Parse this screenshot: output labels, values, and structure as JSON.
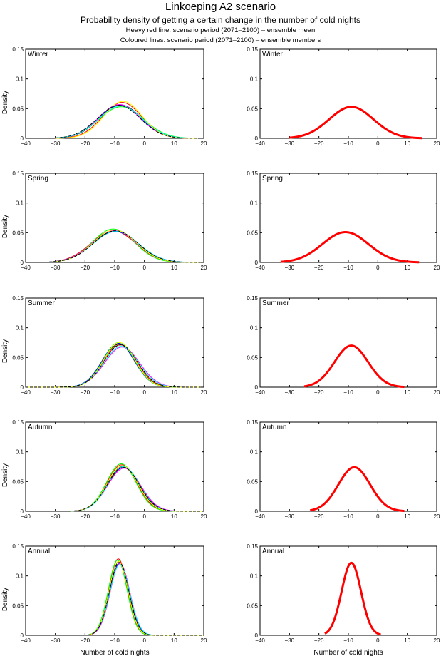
{
  "title": "Linkoeping A2 scenario",
  "subtitle": "Probability density of getting a certain change in the number of cold nights",
  "note_mean": "Heavy red line: scenario period (2071–2100) – ensemble mean",
  "note_members": "Coloured lines: scenario period (2071–2100) – ensemble members",
  "colors": {
    "ensemble_mean": "#ff0000",
    "members": [
      "#000000",
      "#ff0000",
      "#0000ff",
      "#00ff00",
      "#ff00ff",
      "#00ffff",
      "#ffff00",
      "#000000"
    ]
  },
  "chart_data": [
    {
      "type": "line",
      "panel": "Winter – ensemble members",
      "season": "Winter",
      "xlabel": "",
      "ylabel": "Density",
      "xlim": [
        -40,
        20
      ],
      "ylim": [
        0,
        0.15
      ],
      "xticks": [
        -40,
        -30,
        -20,
        -10,
        0,
        10,
        20
      ],
      "yticks": [
        0,
        0.05,
        0.1,
        0.15
      ],
      "xrange": [
        -30,
        18
      ],
      "series": [
        {
          "name": "member 1",
          "mean": -8.0,
          "sd": 7.1
        },
        {
          "name": "member 2",
          "mean": -7.5,
          "sd": 6.6
        },
        {
          "name": "member 3",
          "mean": -8.2,
          "sd": 7.2
        },
        {
          "name": "member 4",
          "mean": -7.8,
          "sd": 7.5
        },
        {
          "name": "member 5",
          "mean": -8.4,
          "sd": 7.0
        },
        {
          "name": "member 6",
          "mean": -8.0,
          "sd": 7.3
        },
        {
          "name": "member 7",
          "mean": -7.2,
          "sd": 6.4
        },
        {
          "name": "member 8",
          "mean": -8.6,
          "sd": 7.2
        }
      ]
    },
    {
      "type": "line",
      "panel": "Winter – ensemble mean",
      "season": "Winter",
      "xlabel": "",
      "ylabel": "",
      "xlim": [
        -40,
        20
      ],
      "ylim": [
        0,
        0.15
      ],
      "xticks": [
        -40,
        -30,
        -20,
        -10,
        0,
        10,
        20
      ],
      "yticks": [
        0,
        0.05,
        0.1,
        0.15
      ],
      "xrange": [
        -30,
        15
      ],
      "series": [
        {
          "name": "ensemble mean",
          "mean": -9.0,
          "sd": 7.5,
          "peak": 0.053
        }
      ]
    },
    {
      "type": "line",
      "panel": "Spring – ensemble members",
      "season": "Spring",
      "xlabel": "",
      "ylabel": "Density",
      "xlim": [
        -40,
        20
      ],
      "ylim": [
        0,
        0.15
      ],
      "xticks": [
        -40,
        -30,
        -20,
        -10,
        0,
        10,
        20
      ],
      "yticks": [
        0,
        0.05,
        0.1,
        0.15
      ],
      "xrange": [
        -32,
        19
      ],
      "series": [
        {
          "name": "member 1",
          "mean": -10.0,
          "sd": 7.6
        },
        {
          "name": "member 2",
          "mean": -10.5,
          "sd": 7.5
        },
        {
          "name": "member 3",
          "mean": -9.8,
          "sd": 7.7
        },
        {
          "name": "member 4",
          "mean": -10.5,
          "sd": 7.1
        },
        {
          "name": "member 5",
          "mean": -10.2,
          "sd": 7.4
        },
        {
          "name": "member 6",
          "mean": -9.6,
          "sd": 7.6
        },
        {
          "name": "member 7",
          "mean": -10.0,
          "sd": 7.3
        },
        {
          "name": "member 8",
          "mean": -9.7,
          "sd": 7.5
        }
      ]
    },
    {
      "type": "line",
      "panel": "Spring – ensemble mean",
      "season": "Spring",
      "xlabel": "",
      "ylabel": "",
      "xlim": [
        -40,
        20
      ],
      "ylim": [
        0,
        0.15
      ],
      "xticks": [
        -40,
        -30,
        -20,
        -10,
        0,
        10,
        20
      ],
      "yticks": [
        0,
        0.05,
        0.1,
        0.15
      ],
      "xrange": [
        -33,
        14
      ],
      "series": [
        {
          "name": "ensemble mean",
          "mean": -11.0,
          "sd": 7.8,
          "peak": 0.051
        }
      ]
    },
    {
      "type": "line",
      "panel": "Summer – ensemble members",
      "season": "Summer",
      "xlabel": "",
      "ylabel": "Density",
      "xlim": [
        -40,
        20
      ],
      "ylim": [
        0,
        0.15
      ],
      "xticks": [
        -40,
        -30,
        -20,
        -10,
        0,
        10,
        20
      ],
      "yticks": [
        0,
        0.05,
        0.1,
        0.15
      ],
      "xrange": [
        -40,
        19
      ],
      "series": [
        {
          "name": "member 1",
          "mean": -8.5,
          "sd": 5.5
        },
        {
          "name": "member 2",
          "mean": -8.2,
          "sd": 5.6
        },
        {
          "name": "member 3",
          "mean": -8.8,
          "sd": 5.4
        },
        {
          "name": "member 4",
          "mean": -8.6,
          "sd": 5.3
        },
        {
          "name": "member 5",
          "mean": -7.5,
          "sd": 5.9
        },
        {
          "name": "member 6",
          "mean": -7.8,
          "sd": 5.8
        },
        {
          "name": "member 7",
          "mean": -8.4,
          "sd": 5.3
        },
        {
          "name": "member 8",
          "mean": -8.0,
          "sd": 5.6
        }
      ]
    },
    {
      "type": "line",
      "panel": "Summer – ensemble mean",
      "season": "Summer",
      "xlabel": "",
      "ylabel": "",
      "xlim": [
        -40,
        20
      ],
      "ylim": [
        0,
        0.15
      ],
      "xticks": [
        -40,
        -30,
        -20,
        -10,
        0,
        10,
        20
      ],
      "yticks": [
        0,
        0.05,
        0.1,
        0.15
      ],
      "xrange": [
        -25,
        9
      ],
      "series": [
        {
          "name": "ensemble mean",
          "mean": -9.0,
          "sd": 5.7,
          "peak": 0.07
        }
      ]
    },
    {
      "type": "line",
      "panel": "Autumn – ensemble members",
      "season": "Autumn",
      "xlabel": "",
      "ylabel": "Density",
      "xlim": [
        -40,
        20
      ],
      "ylim": [
        0,
        0.15
      ],
      "xticks": [
        -40,
        -30,
        -20,
        -10,
        0,
        10,
        20
      ],
      "yticks": [
        0,
        0.05,
        0.1,
        0.15
      ],
      "xrange": [
        -25,
        20
      ],
      "series": [
        {
          "name": "member 1",
          "mean": -7.2,
          "sd": 5.3
        },
        {
          "name": "member 2",
          "mean": -7.6,
          "sd": 5.1
        },
        {
          "name": "member 3",
          "mean": -7.0,
          "sd": 5.4
        },
        {
          "name": "member 4",
          "mean": -7.8,
          "sd": 5.0
        },
        {
          "name": "member 5",
          "mean": -6.8,
          "sd": 5.5
        },
        {
          "name": "member 6",
          "mean": -7.0,
          "sd": 5.3
        },
        {
          "name": "member 7",
          "mean": -7.4,
          "sd": 5.2
        },
        {
          "name": "member 8",
          "mean": -7.1,
          "sd": 5.4
        }
      ]
    },
    {
      "type": "line",
      "panel": "Autumn – ensemble mean",
      "season": "Autumn",
      "xlabel": "",
      "ylabel": "",
      "xlim": [
        -40,
        20
      ],
      "ylim": [
        0,
        0.15
      ],
      "xticks": [
        -40,
        -30,
        -20,
        -10,
        0,
        10,
        20
      ],
      "yticks": [
        0,
        0.05,
        0.1,
        0.15
      ],
      "xrange": [
        -23,
        9
      ],
      "series": [
        {
          "name": "ensemble mean",
          "mean": -8.0,
          "sd": 5.4,
          "peak": 0.074
        }
      ]
    },
    {
      "type": "line",
      "panel": "Annual – ensemble members",
      "season": "Annual",
      "xlabel": "Number of cold nights",
      "ylabel": "Density",
      "xlim": [
        -40,
        20
      ],
      "ylim": [
        0,
        0.15
      ],
      "xticks": [
        -40,
        -30,
        -20,
        -10,
        0,
        10,
        20
      ],
      "yticks": [
        0,
        0.05,
        0.1,
        0.15
      ],
      "xrange": [
        -19,
        20
      ],
      "series": [
        {
          "name": "member 1",
          "mean": -8.6,
          "sd": 3.2
        },
        {
          "name": "member 2",
          "mean": -8.8,
          "sd": 3.1
        },
        {
          "name": "member 3",
          "mean": -8.4,
          "sd": 3.3
        },
        {
          "name": "member 4",
          "mean": -9.0,
          "sd": 3.15
        },
        {
          "name": "member 5",
          "mean": -8.2,
          "sd": 3.3
        },
        {
          "name": "member 6",
          "mean": -8.3,
          "sd": 3.35
        },
        {
          "name": "member 7",
          "mean": -8.7,
          "sd": 3.2
        },
        {
          "name": "member 8",
          "mean": -8.5,
          "sd": 3.25
        }
      ]
    },
    {
      "type": "line",
      "panel": "Annual – ensemble mean",
      "season": "Annual",
      "xlabel": "Number of cold nights",
      "ylabel": "",
      "xlim": [
        -40,
        20
      ],
      "ylim": [
        0,
        0.15
      ],
      "xticks": [
        -40,
        -30,
        -20,
        -10,
        0,
        10,
        20
      ],
      "yticks": [
        0,
        0.05,
        0.1,
        0.15
      ],
      "xrange": [
        -18,
        1
      ],
      "series": [
        {
          "name": "ensemble mean",
          "mean": -9.0,
          "sd": 3.3,
          "peak": 0.122
        }
      ]
    }
  ]
}
